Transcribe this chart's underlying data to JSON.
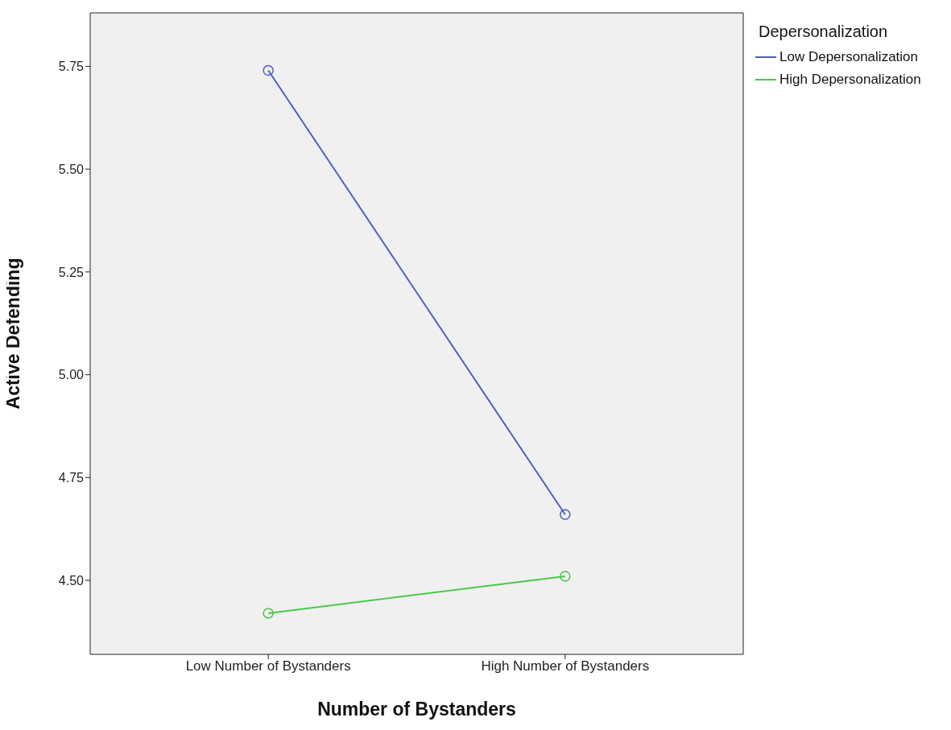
{
  "chart_data": {
    "type": "line",
    "xlabel": "Number of Bystanders",
    "ylabel": "Active Defending",
    "legend_title": "Depersonalization",
    "categories": [
      "Low Number of Bystanders",
      "High Number of Bystanders"
    ],
    "series": [
      {
        "name": "Low Depersonalization",
        "color": "#4f5fbf",
        "values": [
          5.74,
          4.66
        ]
      },
      {
        "name": "High Depersonalization",
        "color": "#4cc74c",
        "values": [
          4.42,
          4.51
        ]
      }
    ],
    "ylim": [
      4.32,
      5.88
    ],
    "yticks": [
      {
        "value": 4.5,
        "label": "4.50"
      },
      {
        "value": 4.75,
        "label": "4.75"
      },
      {
        "value": 5.0,
        "label": "5.00"
      },
      {
        "value": 5.25,
        "label": "5.25"
      },
      {
        "value": 5.5,
        "label": "5.50"
      },
      {
        "value": 5.75,
        "label": "5.75"
      }
    ],
    "grid": false,
    "legend": "top right",
    "marker": "circle",
    "line_style": "solid"
  }
}
